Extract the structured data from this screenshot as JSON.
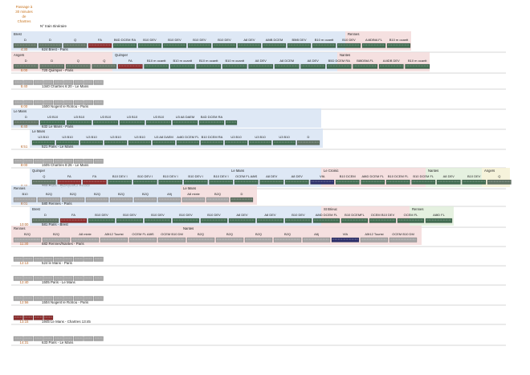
{
  "header": {
    "title": [
      "Passage à",
      "30 minutes",
      "de",
      "Chartres"
    ],
    "columns": "N° train  Itinéraire"
  },
  "rows": [
    {
      "zones": [
        "Brest",
        "Rennes"
      ],
      "cars": [
        "D",
        "D",
        "Q",
        "FA",
        "B6D DCEM RA",
        "B10 DEV",
        "B10 DEV",
        "B10 DEV",
        "B10 DEV",
        "A8 DEV",
        "A8tB DCEM",
        "B5tB DEV",
        "B10 m ocantt",
        "B10 DEV",
        "A4tDBtA FL",
        "B10 m ocantt"
      ],
      "time": "4:30",
      "train": "624 Brest - Paris"
    },
    {
      "zones": [
        "Angers",
        "Quimper",
        "Nantes"
      ],
      "cars": [
        "D",
        "D",
        "Q",
        "Q",
        "FA",
        "B10 m ocantt",
        "B10 m ocantt",
        "B10 m ocantt",
        "B10 m ocantt",
        "A8 DEV",
        "A8 DCEM",
        "A8 DEV",
        "B5D DCEM RA",
        "B8tDBtA FL",
        "A4tDB DEV",
        "B10 m ocantt"
      ],
      "time": "5:00",
      "train": "720 Quimper - Paris"
    },
    {
      "time": "5:40",
      "train": "1340 Chartres 6:20 - Le Mans"
    },
    {
      "time": "6:00",
      "train": "1500 Nogent le Rotrou - Paris"
    },
    {
      "zones": [
        "Le Mans"
      ],
      "cars": [
        "D",
        "U3 B10",
        "U3 B10",
        "U3 B10",
        "U3 B10",
        "U3 B10",
        "U3 A8 DAEM",
        "B4D DCEM RA"
      ],
      "time": "6:40",
      "train": "632 Le Mans - Paris"
    },
    {
      "zones": [
        "Le Mans"
      ],
      "cars": [
        "U3 B10",
        "U3 B10",
        "U3 B10",
        "U3 B10",
        "U3 B10",
        "U3 A8 DAEM",
        "A4tD DCEM FL",
        "B10 DCEM RA",
        "U3 B10",
        "U3 B10",
        "U3 B10",
        "D"
      ],
      "time": "6:51",
      "train": "521 Paris - Le Mans"
    },
    {
      "time": "8:00",
      "train": "1505 Chartres 8:26 - Le Mans"
    },
    {
      "zones": [
        "Quimper",
        "Le Mans",
        "Le Croisic",
        "Nantes",
        "Angers"
      ],
      "cars": [
        "Q",
        "FA",
        "FA",
        "B10 DEV I",
        "B10 DEV I",
        "B10 DEV I",
        "B10 DEV I",
        "B10 DEV I",
        "OCEM FL A8tS",
        "A8 DEV",
        "A8 DEV",
        "VfA",
        "B10 DCEM",
        "A8tD DCEM FL",
        "B10 DCEM FL",
        "B10 DCEM FL",
        "A8 DEV",
        "B10 DEV",
        "Q"
      ],
      "time": "8:40",
      "train": "703 Paris - Quimper/Le Croisic"
    },
    {
      "zones": [
        "Rennes",
        "Le Mans"
      ],
      "cars": [
        "B10",
        "B2Q",
        "B2Q",
        "B2Q",
        "B2Q",
        "B2Q",
        "A9j",
        "A8 mixte",
        "B2Q",
        "D"
      ],
      "time": "9:01",
      "train": "580 Rennes - Paris"
    },
    {
      "zones": [
        "Brest",
        "St Brieuc",
        "Rennes"
      ],
      "cars": [
        "D",
        "FA",
        "B10 DEV",
        "B10 DEV",
        "B10 DEV",
        "B10 DEV",
        "B10 DEV",
        "A8 DEV",
        "A8 DEV",
        "B10 DEV",
        "A8tD DCEM FL",
        "B10 DCEMFL",
        "OCEM B10 DEV",
        "OCEM FL",
        "A8tD FL"
      ],
      "time": "10:00",
      "train": "581 Paris - Brest"
    },
    {
      "zones": [
        "Rennes",
        "Nantes"
      ],
      "cars": [
        "B2Q",
        "B2Q",
        "A8 mixte",
        "A5t12 Tourist",
        "OCEM FL A8tS",
        "OCEM B10 DM",
        "B2Q",
        "B2Q",
        "B2Q",
        "B2Q",
        "A8j",
        "VfA",
        "A5t12 Tourist",
        "OCEM B10 DM"
      ],
      "time": "11:30",
      "train": "582 Rennes/Nantes - Paris"
    },
    {
      "time": "12:13",
      "train": "524 le Mans - Paris"
    },
    {
      "time": "12:40",
      "train": "1505 Paris - Le Mans"
    },
    {
      "time": "12:56",
      "train": "1504 Nogent le Rotrou - Paris"
    },
    {
      "time": "13:15",
      "train": "1945 Le Mans - Chartres 13:45"
    },
    {
      "time": "14:31",
      "train": "633 Paris - Le Mans"
    }
  ]
}
